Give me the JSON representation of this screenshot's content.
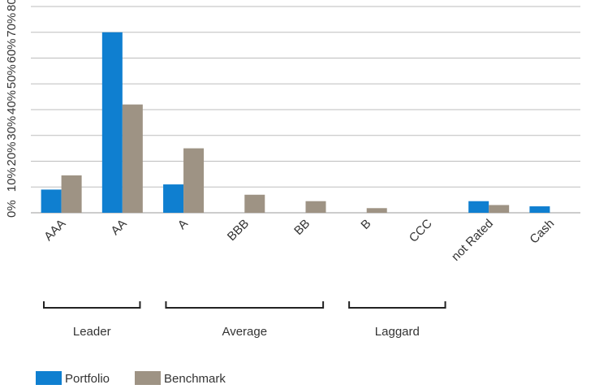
{
  "chart_data": {
    "type": "bar",
    "categories": [
      "AAA",
      "AA",
      "A",
      "BBB",
      "BB",
      "B",
      "CCC",
      "not Rated",
      "Cash"
    ],
    "series": [
      {
        "name": "Portfolio",
        "color": "#0f7fd0",
        "values": [
          9,
          70,
          11,
          0,
          0,
          0,
          0,
          4.5,
          2.5
        ]
      },
      {
        "name": "Benchmark",
        "color": "#9e9384",
        "values": [
          14.5,
          42,
          25,
          7,
          4.5,
          1.8,
          0,
          3,
          0
        ]
      }
    ],
    "yticks": [
      "0%",
      "10%",
      "20%",
      "30%",
      "40%",
      "50%",
      "60%",
      "70%",
      "80%"
    ],
    "ylim": [
      0,
      80
    ],
    "grid": true,
    "legend_position": "bottom-left",
    "groups": [
      {
        "label": "Leader",
        "from": "AAA",
        "to": "AA"
      },
      {
        "label": "Average",
        "from": "A",
        "to": "BB"
      },
      {
        "label": "Laggard",
        "from": "B",
        "to": "CCC"
      }
    ]
  }
}
